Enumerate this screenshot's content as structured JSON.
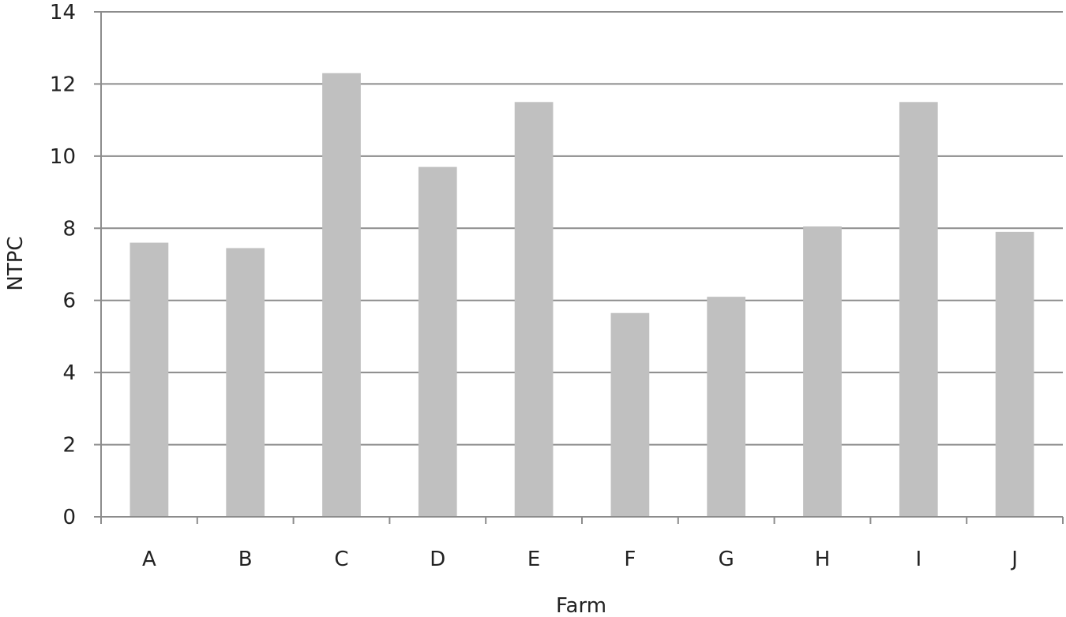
{
  "chart_data": {
    "type": "bar",
    "categories": [
      "A",
      "B",
      "C",
      "D",
      "E",
      "F",
      "G",
      "H",
      "I",
      "J"
    ],
    "values": [
      7.6,
      7.45,
      12.3,
      9.7,
      11.5,
      5.65,
      6.1,
      8.05,
      11.5,
      7.9
    ],
    "xlabel": "Farm",
    "ylabel": "NTPC",
    "ylim": [
      0,
      14
    ],
    "yticks": [
      0,
      2,
      4,
      6,
      8,
      10,
      12,
      14
    ],
    "ytick_labels": [
      "0",
      "2",
      "4",
      "6",
      "8",
      "10",
      "12",
      "14"
    ],
    "grid": true,
    "legend": "none",
    "bar_color": "#c0c0c0",
    "grid_color": "#8c8c8c"
  }
}
